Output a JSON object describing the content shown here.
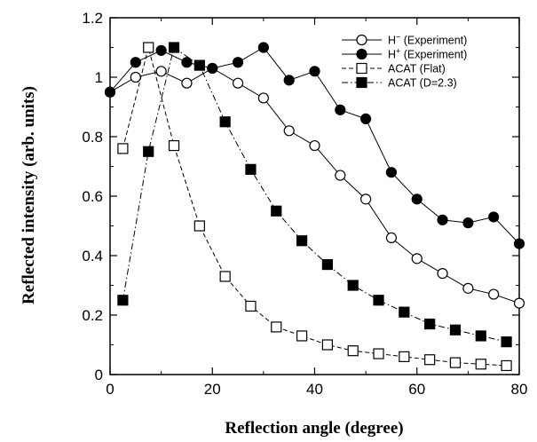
{
  "chart_data": {
    "type": "line",
    "xlabel": "Reflection angle (degree)",
    "ylabel": "Reflected intensity (arb. units)",
    "xlim": [
      0,
      80
    ],
    "ylim": [
      0,
      1.2
    ],
    "x_ticks": [
      "0",
      "20",
      "40",
      "60",
      "80"
    ],
    "y_ticks": [
      "0",
      "0.2",
      "0.4",
      "0.6",
      "0.8",
      "1",
      "1.2"
    ],
    "grid": false,
    "legend_position": "top-right",
    "series": [
      {
        "name": "H",
        "name_sup": "−",
        "name_suffix": " (Experiment)",
        "marker": "open-circle",
        "line": "solid",
        "x": [
          0,
          5,
          10,
          15,
          20,
          25,
          30,
          35,
          40,
          45,
          50,
          55,
          60,
          65,
          70,
          75,
          80
        ],
        "y": [
          0.95,
          1.0,
          1.02,
          0.98,
          1.03,
          0.98,
          0.93,
          0.82,
          0.77,
          0.67,
          0.59,
          0.46,
          0.39,
          0.34,
          0.29,
          0.27,
          0.24
        ]
      },
      {
        "name": "H",
        "name_sup": "+",
        "name_suffix": " (Experiment)",
        "marker": "filled-circle",
        "line": "solid",
        "x": [
          0,
          5,
          10,
          15,
          20,
          25,
          30,
          35,
          40,
          45,
          50,
          55,
          60,
          65,
          70,
          75,
          80
        ],
        "y": [
          0.95,
          1.05,
          1.09,
          1.05,
          1.03,
          1.05,
          1.1,
          0.99,
          1.02,
          0.89,
          0.86,
          0.68,
          0.59,
          0.52,
          0.51,
          0.53,
          0.44
        ]
      },
      {
        "name": "ACAT (Flat)",
        "marker": "open-square",
        "line": "dashed",
        "x": [
          2.5,
          7.5,
          12.5,
          17.5,
          22.5,
          27.5,
          32.5,
          37.5,
          42.5,
          47.5,
          52.5,
          57.5,
          62.5,
          67.5,
          72.5,
          77.5
        ],
        "y": [
          0.76,
          1.1,
          0.77,
          0.5,
          0.33,
          0.23,
          0.16,
          0.13,
          0.1,
          0.08,
          0.07,
          0.06,
          0.05,
          0.04,
          0.035,
          0.03
        ]
      },
      {
        "name": "ACAT (D=2.3)",
        "marker": "filled-square",
        "line": "dashdot",
        "x": [
          2.5,
          7.5,
          12.5,
          17.5,
          22.5,
          27.5,
          32.5,
          37.5,
          42.5,
          47.5,
          52.5,
          57.5,
          62.5,
          67.5,
          72.5,
          77.5
        ],
        "y": [
          0.25,
          0.75,
          1.1,
          1.04,
          0.85,
          0.69,
          0.55,
          0.45,
          0.37,
          0.3,
          0.25,
          0.21,
          0.17,
          0.15,
          0.13,
          0.11
        ]
      }
    ]
  }
}
